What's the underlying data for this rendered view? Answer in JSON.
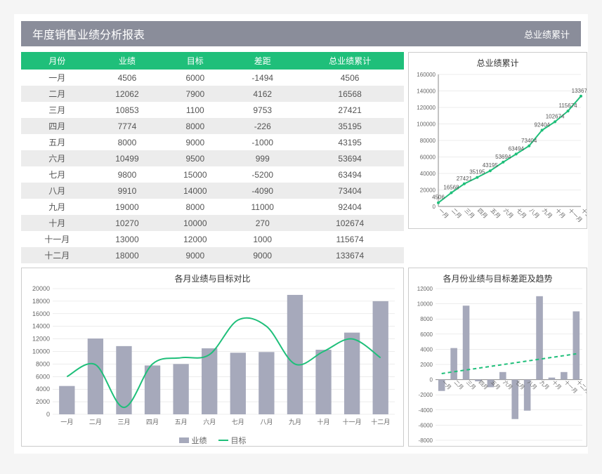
{
  "header": {
    "title": "年度销售业绩分析报表",
    "right_label": "总业绩累计"
  },
  "table": {
    "columns": [
      "月份",
      "业绩",
      "目标",
      "差距",
      "总业绩累计"
    ],
    "rows": [
      [
        "一月",
        4506,
        6000,
        -1494,
        4506
      ],
      [
        "二月",
        12062,
        7900,
        4162,
        16568
      ],
      [
        "三月",
        10853,
        1100,
        9753,
        27421
      ],
      [
        "四月",
        7774,
        8000,
        -226,
        35195
      ],
      [
        "五月",
        8000,
        9000,
        -1000,
        43195
      ],
      [
        "六月",
        10499,
        9500,
        999,
        53694
      ],
      [
        "七月",
        9800,
        15000,
        -5200,
        63494
      ],
      [
        "八月",
        9910,
        14000,
        -4090,
        73404
      ],
      [
        "九月",
        19000,
        8000,
        11000,
        92404
      ],
      [
        "十月",
        10270,
        10000,
        270,
        102674
      ],
      [
        "十一月",
        13000,
        12000,
        1000,
        115674
      ],
      [
        "十二月",
        18000,
        9000,
        9000,
        133674
      ]
    ],
    "header_bg": "#1fbf7a",
    "stripe_bg": "#ececec",
    "font_size": 12
  },
  "months": [
    "一月",
    "二月",
    "三月",
    "四月",
    "五月",
    "六月",
    "七月",
    "八月",
    "九月",
    "十月",
    "十一月",
    "十二月"
  ],
  "cumulative_chart": {
    "title": "总业绩累计",
    "ylim": [
      0,
      160000
    ],
    "ytick_step": 20000,
    "values": [
      4506,
      16568,
      27421,
      35195,
      43195,
      53694,
      63494,
      73404,
      92404,
      102674,
      115674,
      133674
    ],
    "line_color": "#1fbf7a",
    "marker_color": "#1fbf7a",
    "label_fontsize": 8,
    "grid_color": "#d9d9d9",
    "axis_color": "#888888"
  },
  "compare_chart": {
    "title": "各月业绩与目标对比",
    "ylim": [
      0,
      20000
    ],
    "ytick_step": 2000,
    "bar_values": [
      4506,
      12062,
      10853,
      7774,
      8000,
      10499,
      9800,
      9910,
      19000,
      10270,
      13000,
      18000
    ],
    "line_values": [
      6000,
      7900,
      1100,
      8000,
      9000,
      9500,
      15000,
      14000,
      8000,
      10000,
      12000,
      9000
    ],
    "bar_color": "#a6a9bb",
    "line_color": "#1fbf7a",
    "grid_color": "#d9d9d9",
    "bar_width": 0.55,
    "legend": {
      "bar": "业绩",
      "line": "目标"
    }
  },
  "gap_chart": {
    "title": "各月份业绩与目标差距及趋势",
    "ylim": [
      -8000,
      12000
    ],
    "ytick_step": 2000,
    "bar_values": [
      -1494,
      4162,
      9753,
      -226,
      -1000,
      999,
      -5200,
      -4090,
      11000,
      270,
      1000,
      9000
    ],
    "trend": {
      "start": 800,
      "end": 3400
    },
    "bar_color": "#a6a9bb",
    "trend_color": "#1fbf7a",
    "grid_color": "#d9d9d9",
    "axis_color": "#888888"
  },
  "colors": {
    "header_bar": "#8a8d9a",
    "panel_border": "#cccccc",
    "background": "#ffffff"
  }
}
